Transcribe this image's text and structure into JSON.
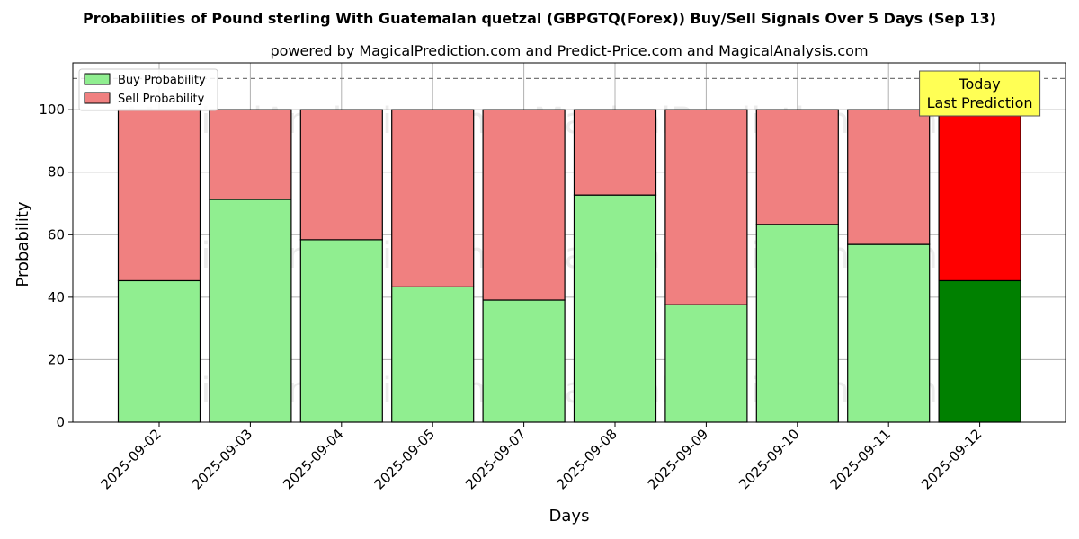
{
  "chart_data": {
    "type": "bar",
    "stacked": true,
    "title": "Probabilities of Pound sterling With Guatemalan quetzal (GBPGTQ(Forex)) Buy/Sell Signals Over 5 Days (Sep 13)",
    "subtitle": "powered by MagicalPrediction.com and Predict-Price.com and MagicalAnalysis.com",
    "xlabel": "Days",
    "ylabel": "Probability",
    "ylim": [
      0,
      115
    ],
    "yticks": [
      0,
      20,
      40,
      60,
      80,
      100
    ],
    "grid": true,
    "legend_position": "top-left",
    "categories": [
      "2025-09-02",
      "2025-09-03",
      "2025-09-04",
      "2025-09-05",
      "2025-09-07",
      "2025-09-08",
      "2025-09-09",
      "2025-09-10",
      "2025-09-11",
      "2025-09-12"
    ],
    "series": [
      {
        "name": "Buy Probability",
        "values": [
          45.3,
          71.3,
          58.4,
          43.3,
          39.1,
          72.7,
          37.6,
          63.3,
          56.9,
          45.3
        ]
      },
      {
        "name": "Sell Probability",
        "values": [
          54.7,
          28.7,
          41.6,
          56.7,
          60.9,
          27.3,
          62.4,
          36.7,
          43.1,
          54.7
        ]
      }
    ],
    "colors": {
      "buy": "#90ee90",
      "sell": "#f08080",
      "buy_highlight": "#008000",
      "sell_highlight": "#ff0000",
      "annotation_box": "#ffff55"
    },
    "reference_line": 110,
    "annotation": {
      "line1": "Today",
      "line2": "Last Prediction"
    },
    "watermarks": [
      "MagicalAnalysis.com",
      "MagicalPrediction.com"
    ]
  }
}
